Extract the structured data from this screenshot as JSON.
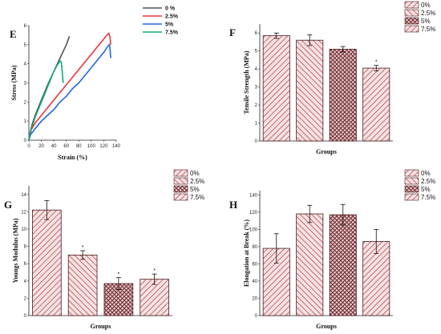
{
  "panels": {
    "E": "E",
    "F": "F",
    "G": "G",
    "H": "H"
  },
  "chart_data": [
    {
      "id": "E",
      "type": "line",
      "xlabel": "Strain  (%)",
      "ylabel": "Stress (MPa)",
      "xlim": [
        0,
        140
      ],
      "ylim": [
        0,
        6
      ],
      "xticks": [
        "0",
        "20",
        "40",
        "60",
        "80",
        "100",
        "120",
        "140"
      ],
      "yticks": [
        "0",
        "1",
        "2",
        "3",
        "4",
        "5",
        "6"
      ],
      "legend": {
        "position": "top-right",
        "style": "bold"
      },
      "series": [
        {
          "name": "0 %",
          "color": "#555555",
          "x": [
            0,
            2,
            5,
            10,
            20,
            30,
            40,
            50,
            60,
            65
          ],
          "y": [
            0,
            0.4,
            0.8,
            1.3,
            2.1,
            2.9,
            3.6,
            4.3,
            5.0,
            5.45
          ]
        },
        {
          "name": "2.5%",
          "color": "#ee3344",
          "x": [
            0,
            3,
            10,
            20,
            30,
            40,
            50,
            60,
            70,
            80,
            90,
            100,
            110,
            120,
            125,
            128,
            130,
            131
          ],
          "y": [
            0,
            0.5,
            0.9,
            1.3,
            1.7,
            2.1,
            2.5,
            2.9,
            3.3,
            3.7,
            4.1,
            4.5,
            4.9,
            5.3,
            5.5,
            5.6,
            5.4,
            5.0
          ]
        },
        {
          "name": "5%",
          "color": "#2266dd",
          "x": [
            0,
            3,
            10,
            20,
            30,
            40,
            50,
            60,
            70,
            80,
            90,
            100,
            110,
            120,
            126,
            129,
            130,
            131
          ],
          "y": [
            0,
            0.3,
            0.6,
            1.0,
            1.3,
            1.6,
            2.0,
            2.3,
            2.7,
            3.0,
            3.4,
            3.8,
            4.2,
            4.6,
            4.9,
            5.0,
            4.8,
            4.3
          ]
        },
        {
          "name": "7.5%",
          "color": "#11aa77",
          "x": [
            0,
            2,
            5,
            10,
            20,
            30,
            40,
            45,
            50,
            52,
            55
          ],
          "y": [
            0,
            0.3,
            0.7,
            1.2,
            2.0,
            2.8,
            3.6,
            3.9,
            4.15,
            4.1,
            3.0
          ]
        }
      ]
    },
    {
      "id": "F",
      "type": "bar",
      "xlabel": "Groups",
      "ylabel": "Tensile Strength (MPa)",
      "ylim": [
        0,
        6.5
      ],
      "yticks": [
        "0",
        "1",
        "2",
        "3",
        "4",
        "5",
        "6"
      ],
      "legend": {
        "position": "top-right"
      },
      "series": [
        {
          "name": "0%",
          "value": 5.85,
          "error": 0.15,
          "pattern": "hatch-right",
          "star": false
        },
        {
          "name": "2.5%",
          "value": 5.6,
          "error": 0.3,
          "pattern": "hatch-left",
          "star": false
        },
        {
          "name": "5%",
          "value": 5.1,
          "error": 0.15,
          "pattern": "cross",
          "star": false
        },
        {
          "name": "7.5%",
          "value": 4.05,
          "error": 0.15,
          "pattern": "hatch-right",
          "star": true
        }
      ],
      "star_label": "*"
    },
    {
      "id": "G",
      "type": "bar",
      "xlabel": "Groups",
      "ylabel": "Youngs Modulus (MPa)",
      "ylim": [
        0,
        15
      ],
      "yticks": [
        "0",
        "2",
        "4",
        "6",
        "8",
        "10",
        "12",
        "14"
      ],
      "legend": {
        "position": "top-right"
      },
      "series": [
        {
          "name": "0%",
          "value": 12.2,
          "error": 1.1,
          "pattern": "hatch-right",
          "star": false
        },
        {
          "name": "2.5%",
          "value": 7.0,
          "error": 0.5,
          "pattern": "hatch-left",
          "star": true
        },
        {
          "name": "5%",
          "value": 3.7,
          "error": 0.7,
          "pattern": "cross",
          "star": true
        },
        {
          "name": "7.5%",
          "value": 4.2,
          "error": 0.6,
          "pattern": "hatch-right",
          "star": true
        }
      ],
      "star_label": "*"
    },
    {
      "id": "H",
      "type": "bar",
      "xlabel": "Groups",
      "ylabel": "Elongation at Break (%)",
      "ylim": [
        0,
        145
      ],
      "yticks": [
        "0",
        "20",
        "40",
        "60",
        "80",
        "100",
        "120",
        "140"
      ],
      "legend": {
        "position": "top-right"
      },
      "series": [
        {
          "name": "0%",
          "value": 78,
          "error": 17,
          "pattern": "hatch-right",
          "star": false
        },
        {
          "name": "2.5%",
          "value": 118,
          "error": 10,
          "pattern": "hatch-left",
          "star": false
        },
        {
          "name": "5%",
          "value": 117,
          "error": 12,
          "pattern": "cross",
          "star": false
        },
        {
          "name": "7.5%",
          "value": 86,
          "error": 14,
          "pattern": "hatch-right",
          "star": false
        }
      ],
      "star_label": "*"
    }
  ]
}
